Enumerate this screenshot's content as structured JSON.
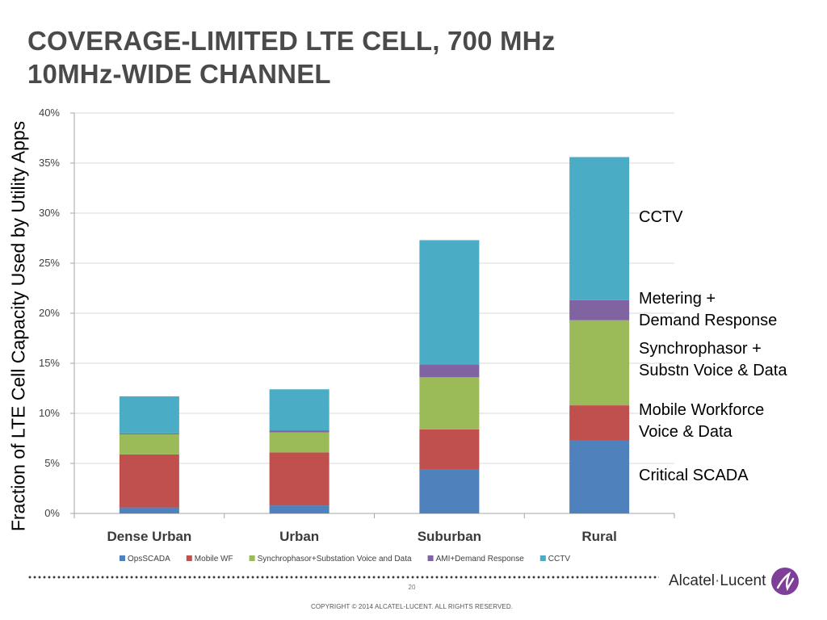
{
  "title": {
    "line1": "COVERAGE-LIMITED LTE CELL, 700 MHz",
    "line2": "10MHz-WIDE CHANNEL"
  },
  "chart_data": {
    "type": "bar",
    "stacked": true,
    "ylabel": "Fraction of LTE Cell Capacity Used by Utility Apps",
    "xlabel": "",
    "ylim": [
      0,
      40
    ],
    "yticks": [
      0,
      5,
      10,
      15,
      20,
      25,
      30,
      35,
      40
    ],
    "ytick_format": "%",
    "grid": true,
    "legend_position": "bottom",
    "categories": [
      "Dense Urban",
      "Urban",
      "Suburban",
      "Rural"
    ],
    "series": [
      {
        "name": "OpsSCADA",
        "color": "#4f81bd",
        "values": [
          0.6,
          0.8,
          4.4,
          7.3
        ]
      },
      {
        "name": "Mobile WF",
        "color": "#c0504d",
        "values": [
          5.3,
          5.3,
          4.0,
          3.5
        ]
      },
      {
        "name": "Synchrophasor+Substation Voice and Data",
        "color": "#9bbb59",
        "values": [
          2.0,
          2.0,
          5.2,
          8.5
        ]
      },
      {
        "name": "AMI+Demand Response",
        "color": "#8064a2",
        "values": [
          0.1,
          0.2,
          1.3,
          2.0
        ]
      },
      {
        "name": "CCTV",
        "color": "#4bacc6",
        "values": [
          3.7,
          4.1,
          12.4,
          14.3
        ]
      }
    ]
  },
  "annotations": {
    "cctv": "CCTV",
    "metering_l1": "Metering +",
    "metering_l2": "Demand Response",
    "synchro_l1": "Synchrophasor +",
    "synchro_l2": "Substn Voice & Data",
    "mobile_l1": "Mobile Workforce",
    "mobile_l2": "Voice & Data",
    "scada": "Critical SCADA"
  },
  "footer": {
    "page_number": "20",
    "copyright": "COPYRIGHT © 2014 ALCATEL-LUCENT.  ALL RIGHTS RESERVED.",
    "brand_name": "Alcatel",
    "brand_dot": "·",
    "brand_name2": "Lucent"
  },
  "colors": {
    "accent": "#7f3f98",
    "grid": "#d9d9d9",
    "axis": "#a6a6a6"
  }
}
